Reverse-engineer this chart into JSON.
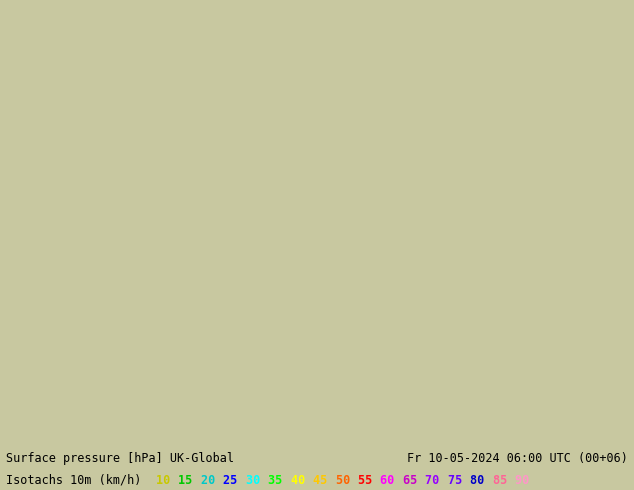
{
  "title_line1": "Surface pressure [hPa] UK-Global",
  "title_line1_right": "Fr 10-05-2024 06:00 UTC (00+06)",
  "title_line2": "Isotachs 10m (km/h)",
  "isotach_values": [
    10,
    15,
    20,
    25,
    30,
    35,
    40,
    45,
    50,
    55,
    60,
    65,
    70,
    75,
    80,
    85,
    90
  ],
  "isotach_colors": [
    "#c8c800",
    "#00c800",
    "#00c8c8",
    "#0000ff",
    "#00ffff",
    "#00ff00",
    "#ffff00",
    "#ffc800",
    "#ff6400",
    "#ff0000",
    "#ff00ff",
    "#c800c8",
    "#9600ff",
    "#6400ff",
    "#0000c8",
    "#ff6496",
    "#ff96c8"
  ],
  "bg_color": "#c8c8a0",
  "map_bg": "#c8c8a0",
  "bottom_bar_bg": "#d8d8d8",
  "text_color": "#000000",
  "fig_width": 6.34,
  "fig_height": 4.9,
  "dpi": 100
}
